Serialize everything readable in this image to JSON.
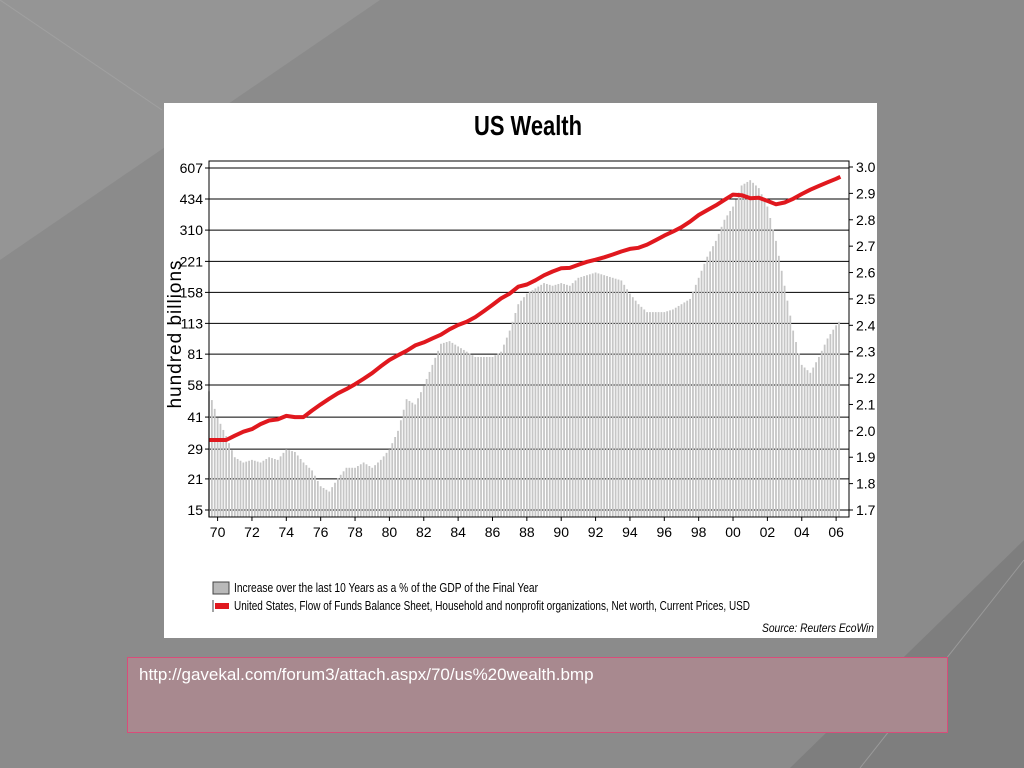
{
  "slide": {
    "background": "#8b8b8b",
    "caption_url": "http://gavekal.com/forum3/attach.aspx/70/us%20wealth.bmp",
    "caption_border_color": "#d84d7a",
    "caption_fill_color": "#a8898f"
  },
  "chart_data": {
    "type": "bar",
    "title": "US Wealth",
    "ylabel": "hundred billions",
    "source": "Source: Reuters EcoWin",
    "left_axis": {
      "scale": "log",
      "ticks": [
        15,
        21,
        29,
        41,
        58,
        81,
        113,
        158,
        221,
        310,
        434,
        607
      ],
      "ylim": [
        15,
        607
      ]
    },
    "right_axis": {
      "ticks": [
        1.7,
        1.8,
        1.9,
        2.0,
        2.1,
        2.2,
        2.3,
        2.4,
        2.5,
        2.6,
        2.7,
        2.8,
        2.9,
        3.0
      ],
      "ylim": [
        1.7,
        3.0
      ]
    },
    "x_ticks": [
      "70",
      "72",
      "74",
      "76",
      "78",
      "80",
      "82",
      "84",
      "86",
      "88",
      "90",
      "92",
      "94",
      "96",
      "98",
      "00",
      "02",
      "04",
      "06"
    ],
    "xlim": [
      1969.5,
      2006.75
    ],
    "grid": true,
    "series": [
      {
        "name": "Increase over the last 10  Years as a % of the GDP of the Final Year",
        "kind": "bar",
        "axis": "right",
        "color": "#c6c6c6",
        "points": [
          [
            1969.5,
            2.15
          ],
          [
            1970.0,
            2.05
          ],
          [
            1970.5,
            1.98
          ],
          [
            1971.0,
            1.9
          ],
          [
            1971.5,
            1.88
          ],
          [
            1972.0,
            1.89
          ],
          [
            1972.5,
            1.88
          ],
          [
            1973.0,
            1.9
          ],
          [
            1973.5,
            1.89
          ],
          [
            1974.0,
            1.93
          ],
          [
            1974.5,
            1.92
          ],
          [
            1975.0,
            1.88
          ],
          [
            1975.5,
            1.85
          ],
          [
            1976.0,
            1.79
          ],
          [
            1976.5,
            1.77
          ],
          [
            1977.0,
            1.82
          ],
          [
            1977.5,
            1.86
          ],
          [
            1978.0,
            1.86
          ],
          [
            1978.5,
            1.88
          ],
          [
            1979.0,
            1.86
          ],
          [
            1979.5,
            1.89
          ],
          [
            1980.0,
            1.93
          ],
          [
            1980.5,
            2.0
          ],
          [
            1981.0,
            2.12
          ],
          [
            1981.5,
            2.1
          ],
          [
            1982.0,
            2.17
          ],
          [
            1982.5,
            2.25
          ],
          [
            1983.0,
            2.33
          ],
          [
            1983.5,
            2.34
          ],
          [
            1984.0,
            2.32
          ],
          [
            1984.5,
            2.3
          ],
          [
            1985.0,
            2.28
          ],
          [
            1985.5,
            2.28
          ],
          [
            1986.0,
            2.28
          ],
          [
            1986.5,
            2.3
          ],
          [
            1987.0,
            2.38
          ],
          [
            1987.5,
            2.48
          ],
          [
            1988.0,
            2.52
          ],
          [
            1988.5,
            2.54
          ],
          [
            1989.0,
            2.56
          ],
          [
            1989.5,
            2.55
          ],
          [
            1990.0,
            2.56
          ],
          [
            1990.5,
            2.55
          ],
          [
            1991.0,
            2.58
          ],
          [
            1991.5,
            2.59
          ],
          [
            1992.0,
            2.6
          ],
          [
            1992.5,
            2.59
          ],
          [
            1993.0,
            2.58
          ],
          [
            1993.5,
            2.57
          ],
          [
            1994.0,
            2.52
          ],
          [
            1994.5,
            2.48
          ],
          [
            1995.0,
            2.45
          ],
          [
            1995.5,
            2.45
          ],
          [
            1996.0,
            2.45
          ],
          [
            1996.5,
            2.46
          ],
          [
            1997.0,
            2.48
          ],
          [
            1997.5,
            2.5
          ],
          [
            1998.0,
            2.58
          ],
          [
            1998.5,
            2.66
          ],
          [
            1999.0,
            2.72
          ],
          [
            1999.5,
            2.8
          ],
          [
            2000.0,
            2.85
          ],
          [
            2000.5,
            2.93
          ],
          [
            2001.0,
            2.95
          ],
          [
            2001.5,
            2.92
          ],
          [
            2002.0,
            2.85
          ],
          [
            2002.5,
            2.72
          ],
          [
            2003.0,
            2.55
          ],
          [
            2003.5,
            2.38
          ],
          [
            2004.0,
            2.25
          ],
          [
            2004.5,
            2.22
          ],
          [
            2005.0,
            2.28
          ],
          [
            2005.5,
            2.35
          ],
          [
            2006.0,
            2.4
          ],
          [
            2006.25,
            2.42
          ]
        ]
      },
      {
        "name": "United States, Flow of Funds Balance Sheet, Household and nonprofit organizations, Net worth, Current Prices, USD",
        "kind": "line",
        "axis": "left",
        "color": "#e0181e",
        "points": [
          [
            1969.5,
            32
          ],
          [
            1970.0,
            32
          ],
          [
            1970.5,
            32
          ],
          [
            1971.0,
            33.5
          ],
          [
            1971.5,
            35
          ],
          [
            1972.0,
            36
          ],
          [
            1972.5,
            38
          ],
          [
            1973.0,
            39.5
          ],
          [
            1973.5,
            40
          ],
          [
            1974.0,
            41.5
          ],
          [
            1974.5,
            41
          ],
          [
            1975.0,
            41
          ],
          [
            1975.5,
            44
          ],
          [
            1976.0,
            47
          ],
          [
            1976.5,
            50
          ],
          [
            1977.0,
            53
          ],
          [
            1977.5,
            55.5
          ],
          [
            1978.0,
            58.5
          ],
          [
            1978.5,
            62
          ],
          [
            1979.0,
            66
          ],
          [
            1979.5,
            71
          ],
          [
            1980.0,
            76
          ],
          [
            1980.5,
            80
          ],
          [
            1981.0,
            84
          ],
          [
            1981.5,
            89
          ],
          [
            1982.0,
            92
          ],
          [
            1982.5,
            96
          ],
          [
            1983.0,
            100
          ],
          [
            1983.5,
            106
          ],
          [
            1984.0,
            111
          ],
          [
            1984.5,
            115
          ],
          [
            1985.0,
            121
          ],
          [
            1985.5,
            129
          ],
          [
            1986.0,
            138
          ],
          [
            1986.5,
            148
          ],
          [
            1987.0,
            156
          ],
          [
            1987.5,
            168
          ],
          [
            1988.0,
            172
          ],
          [
            1988.5,
            180
          ],
          [
            1989.0,
            190
          ],
          [
            1989.5,
            198
          ],
          [
            1990.0,
            205
          ],
          [
            1990.5,
            206
          ],
          [
            1991.0,
            213
          ],
          [
            1991.5,
            220
          ],
          [
            1992.0,
            225
          ],
          [
            1992.5,
            231
          ],
          [
            1993.0,
            238
          ],
          [
            1993.5,
            246
          ],
          [
            1994.0,
            253
          ],
          [
            1994.5,
            256
          ],
          [
            1995.0,
            265
          ],
          [
            1995.5,
            278
          ],
          [
            1996.0,
            292
          ],
          [
            1996.5,
            305
          ],
          [
            1997.0,
            320
          ],
          [
            1997.5,
            340
          ],
          [
            1998.0,
            365
          ],
          [
            1998.5,
            385
          ],
          [
            1999.0,
            405
          ],
          [
            1999.5,
            430
          ],
          [
            2000.0,
            455
          ],
          [
            2000.5,
            452
          ],
          [
            2001.0,
            438
          ],
          [
            2001.5,
            440
          ],
          [
            2002.0,
            425
          ],
          [
            2002.5,
            410
          ],
          [
            2003.0,
            418
          ],
          [
            2003.5,
            435
          ],
          [
            2004.0,
            458
          ],
          [
            2004.5,
            480
          ],
          [
            2005.0,
            500
          ],
          [
            2005.5,
            520
          ],
          [
            2006.0,
            540
          ],
          [
            2006.25,
            552
          ]
        ]
      }
    ],
    "legend": {
      "placement": "bottom-left",
      "bar_label": "Increase over the last 10  Years as a % of the GDP of the Final Year",
      "line_label": "United States, Flow of Funds Balance Sheet, Household and nonprofit organizations, Net worth, Current Prices, USD"
    }
  }
}
